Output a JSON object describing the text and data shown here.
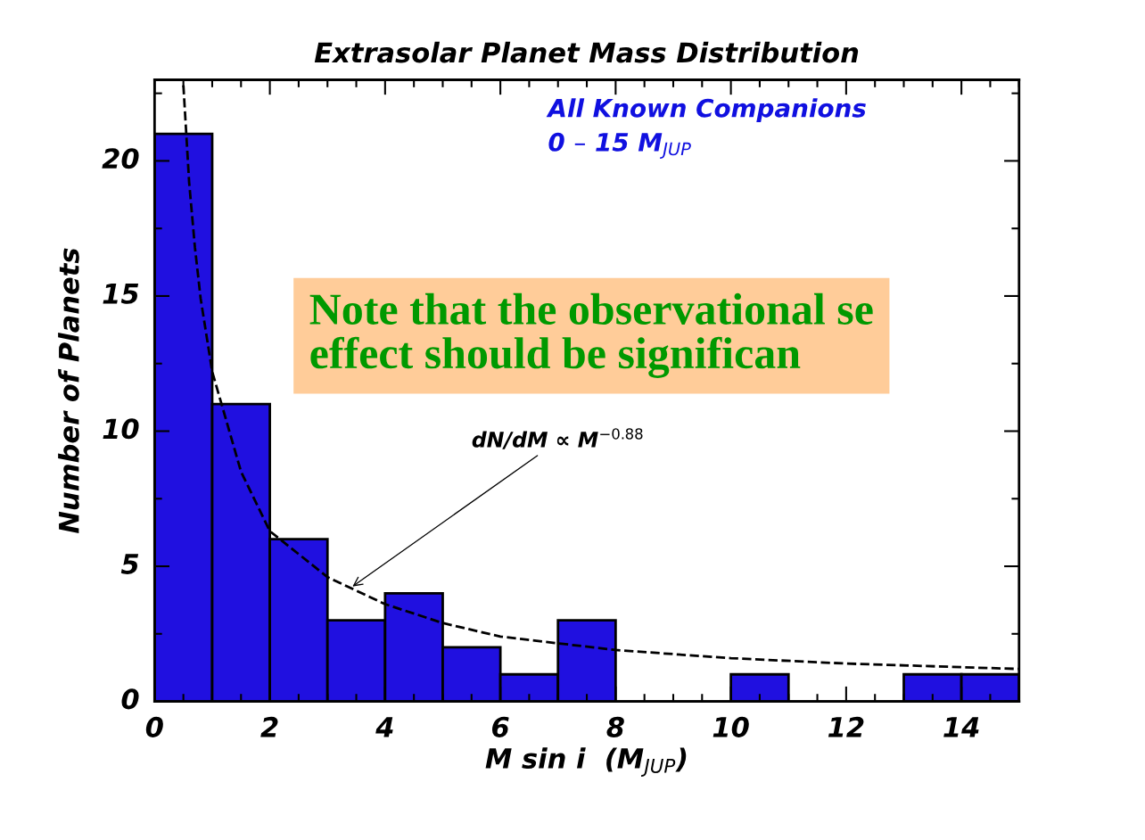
{
  "chart_data": {
    "type": "histogram",
    "title": "Extrasolar Planet Mass Distribution",
    "xlabel": "M sin i  (M$_{JUP}$)",
    "ylabel": "Number of Planets",
    "bins": [
      0,
      1,
      2,
      3,
      4,
      5,
      6,
      7,
      8,
      9,
      10,
      11,
      12,
      13,
      14,
      15
    ],
    "values": [
      21,
      11,
      6,
      3,
      4,
      2,
      1,
      3,
      0,
      0,
      1,
      0,
      0,
      1,
      1
    ],
    "color": "#2010e0",
    "series": [
      {
        "type": "line",
        "color": "#000000",
        "line_style": "dashed",
        "x": [
          0.5,
          0.6,
          0.7,
          0.8,
          1,
          1.5,
          2,
          3,
          4,
          5,
          6,
          8,
          10,
          12,
          15
        ],
        "values": [
          22.8,
          19.2,
          16.8,
          14.9,
          12.2,
          8.5,
          6.3,
          4.6,
          3.6,
          2.9,
          2.4,
          1.9,
          1.6,
          1.4,
          1.2
        ]
      }
    ],
    "xlim": [
      0,
      15
    ],
    "xticks": [
      0,
      2,
      4,
      6,
      8,
      10,
      12,
      14
    ],
    "ylim": [
      0,
      23
    ],
    "yticks": [
      0,
      5,
      10,
      15,
      20
    ],
    "grid": false,
    "annotations": [
      "All Known Companions",
      "0 – 15 M$_{JUP}$",
      {
        "text": "dN/dM ∝ M$^{−0.88}$",
        "x": 3.4,
        "y": 4.2
      },
      "Note that the observational se\neffect should be significan"
    ]
  }
}
